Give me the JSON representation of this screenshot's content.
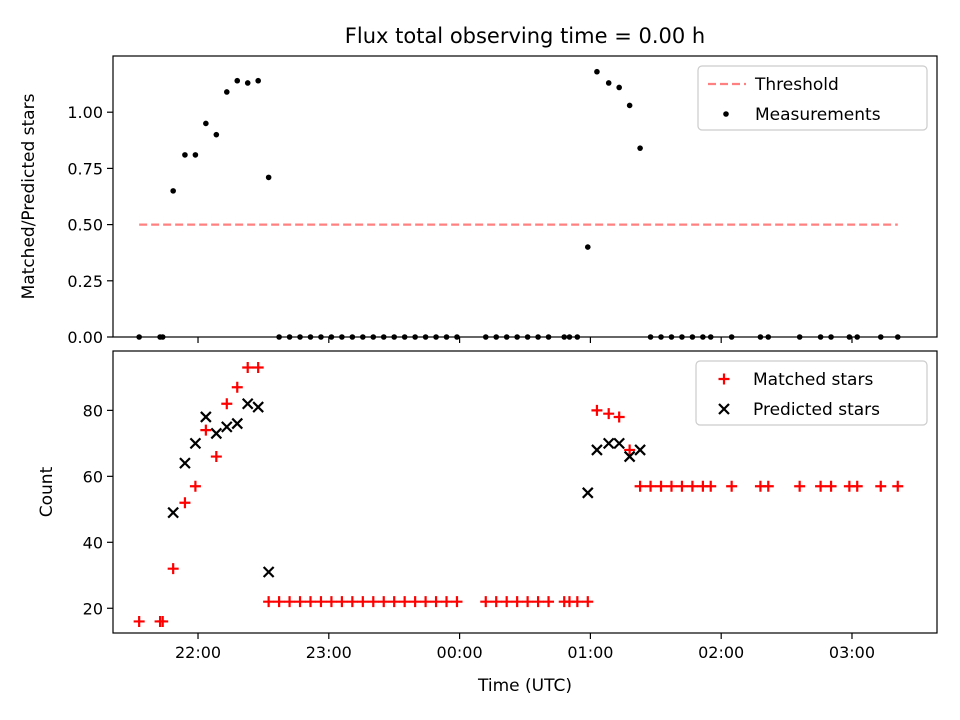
{
  "title": "Flux total observing time = 0.00 h",
  "chart_data": [
    {
      "type": "scatter",
      "xlabel": "",
      "ylabel": "Matched/Predicted stars",
      "xlim": [
        -2.65,
        3.65
      ],
      "ylim": [
        0,
        1.25
      ],
      "yticks": [
        0.0,
        0.25,
        0.5,
        0.75,
        1.0
      ],
      "ytick_labels": [
        "0.00",
        "0.25",
        "0.50",
        "0.75",
        "1.00"
      ],
      "xticks": [
        -2,
        -1,
        0,
        1,
        2,
        3
      ],
      "xtick_labels": [
        "",
        "",
        "",
        "",
        "",
        ""
      ],
      "legend_position": "top-right",
      "legend": [
        "Threshold",
        "Measurements"
      ],
      "threshold": {
        "name": "Threshold",
        "color": "#ff8080",
        "style": "dashed",
        "y": 0.5,
        "x": [
          -2.45,
          3.35
        ]
      },
      "series": [
        {
          "name": "Measurements",
          "color": "#000000",
          "marker": "dot",
          "points": [
            [
              -2.45,
              0.0
            ],
            [
              -2.29,
              0.0
            ],
            [
              -2.27,
              0.0
            ],
            [
              -2.19,
              0.65
            ],
            [
              -2.1,
              0.81
            ],
            [
              -2.02,
              0.81
            ],
            [
              -1.94,
              0.95
            ],
            [
              -1.86,
              0.9
            ],
            [
              -1.78,
              1.09
            ],
            [
              -1.7,
              1.14
            ],
            [
              -1.62,
              1.13
            ],
            [
              -1.54,
              1.14
            ],
            [
              -1.46,
              0.71
            ],
            [
              -1.38,
              0.0
            ],
            [
              -1.3,
              0.0
            ],
            [
              -1.22,
              0.0
            ],
            [
              -1.14,
              0.0
            ],
            [
              -1.06,
              0.0
            ],
            [
              -0.98,
              0.0
            ],
            [
              -0.9,
              0.0
            ],
            [
              -0.82,
              0.0
            ],
            [
              -0.74,
              0.0
            ],
            [
              -0.66,
              0.0
            ],
            [
              -0.58,
              0.0
            ],
            [
              -0.5,
              0.0
            ],
            [
              -0.42,
              0.0
            ],
            [
              -0.34,
              0.0
            ],
            [
              -0.26,
              0.0
            ],
            [
              -0.18,
              0.0
            ],
            [
              -0.1,
              0.0
            ],
            [
              -0.02,
              0.0
            ],
            [
              0.2,
              0.0
            ],
            [
              0.28,
              0.0
            ],
            [
              0.36,
              0.0
            ],
            [
              0.44,
              0.0
            ],
            [
              0.52,
              0.0
            ],
            [
              0.6,
              0.0
            ],
            [
              0.68,
              0.0
            ],
            [
              0.8,
              0.0
            ],
            [
              0.84,
              0.0
            ],
            [
              0.9,
              0.0
            ],
            [
              0.98,
              0.4
            ],
            [
              1.05,
              1.18
            ],
            [
              1.14,
              1.13
            ],
            [
              1.22,
              1.11
            ],
            [
              1.3,
              1.03
            ],
            [
              1.38,
              0.84
            ],
            [
              1.46,
              0.0
            ],
            [
              1.54,
              0.0
            ],
            [
              1.62,
              0.0
            ],
            [
              1.7,
              0.0
            ],
            [
              1.78,
              0.0
            ],
            [
              1.86,
              0.0
            ],
            [
              1.92,
              0.0
            ],
            [
              2.08,
              0.0
            ],
            [
              2.3,
              0.0
            ],
            [
              2.36,
              0.0
            ],
            [
              2.6,
              0.0
            ],
            [
              2.76,
              0.0
            ],
            [
              2.84,
              0.0
            ],
            [
              2.98,
              0.0
            ],
            [
              3.04,
              0.0
            ],
            [
              3.22,
              0.0
            ],
            [
              3.35,
              0.0
            ]
          ]
        }
      ]
    },
    {
      "type": "scatter",
      "xlabel": "Time (UTC)",
      "ylabel": "Count",
      "xlim": [
        -2.65,
        3.65
      ],
      "ylim": [
        12.5,
        98
      ],
      "yticks": [
        20,
        40,
        60,
        80
      ],
      "ytick_labels": [
        "20",
        "40",
        "60",
        "80"
      ],
      "xticks": [
        -2,
        -1,
        0,
        1,
        2,
        3
      ],
      "xtick_labels": [
        "22:00",
        "23:00",
        "00:00",
        "01:00",
        "02:00",
        "03:00"
      ],
      "legend_position": "top-right",
      "legend": [
        "Matched stars",
        "Predicted stars"
      ],
      "series": [
        {
          "name": "Matched stars",
          "color": "#ff0000",
          "marker": "plus",
          "points": [
            [
              -2.45,
              16
            ],
            [
              -2.29,
              16
            ],
            [
              -2.27,
              16
            ],
            [
              -2.19,
              32
            ],
            [
              -2.1,
              52
            ],
            [
              -2.02,
              57
            ],
            [
              -1.94,
              74
            ],
            [
              -1.86,
              66
            ],
            [
              -1.78,
              82
            ],
            [
              -1.7,
              87
            ],
            [
              -1.62,
              93
            ],
            [
              -1.54,
              93
            ],
            [
              -1.46,
              22
            ],
            [
              -1.38,
              22
            ],
            [
              -1.3,
              22
            ],
            [
              -1.22,
              22
            ],
            [
              -1.14,
              22
            ],
            [
              -1.06,
              22
            ],
            [
              -0.98,
              22
            ],
            [
              -0.9,
              22
            ],
            [
              -0.82,
              22
            ],
            [
              -0.74,
              22
            ],
            [
              -0.66,
              22
            ],
            [
              -0.58,
              22
            ],
            [
              -0.5,
              22
            ],
            [
              -0.42,
              22
            ],
            [
              -0.34,
              22
            ],
            [
              -0.26,
              22
            ],
            [
              -0.18,
              22
            ],
            [
              -0.1,
              22
            ],
            [
              -0.02,
              22
            ],
            [
              0.2,
              22
            ],
            [
              0.28,
              22
            ],
            [
              0.36,
              22
            ],
            [
              0.44,
              22
            ],
            [
              0.52,
              22
            ],
            [
              0.6,
              22
            ],
            [
              0.68,
              22
            ],
            [
              0.8,
              22
            ],
            [
              0.84,
              22
            ],
            [
              0.9,
              22
            ],
            [
              0.98,
              22
            ],
            [
              1.05,
              80
            ],
            [
              1.14,
              79
            ],
            [
              1.22,
              78
            ],
            [
              1.3,
              68
            ],
            [
              1.38,
              57
            ],
            [
              1.46,
              57
            ],
            [
              1.54,
              57
            ],
            [
              1.62,
              57
            ],
            [
              1.7,
              57
            ],
            [
              1.78,
              57
            ],
            [
              1.86,
              57
            ],
            [
              1.92,
              57
            ],
            [
              2.08,
              57
            ],
            [
              2.3,
              57
            ],
            [
              2.36,
              57
            ],
            [
              2.6,
              57
            ],
            [
              2.76,
              57
            ],
            [
              2.84,
              57
            ],
            [
              2.98,
              57
            ],
            [
              3.04,
              57
            ],
            [
              3.22,
              57
            ],
            [
              3.35,
              57
            ]
          ]
        },
        {
          "name": "Predicted stars",
          "color": "#000000",
          "marker": "x",
          "points": [
            [
              -2.19,
              49
            ],
            [
              -2.1,
              64
            ],
            [
              -2.02,
              70
            ],
            [
              -1.94,
              78
            ],
            [
              -1.86,
              73
            ],
            [
              -1.78,
              75
            ],
            [
              -1.7,
              76
            ],
            [
              -1.62,
              82
            ],
            [
              -1.54,
              81
            ],
            [
              -1.46,
              31
            ],
            [
              0.98,
              55
            ],
            [
              1.05,
              68
            ],
            [
              1.14,
              70
            ],
            [
              1.22,
              70
            ],
            [
              1.3,
              66
            ],
            [
              1.38,
              68
            ]
          ]
        }
      ]
    }
  ]
}
